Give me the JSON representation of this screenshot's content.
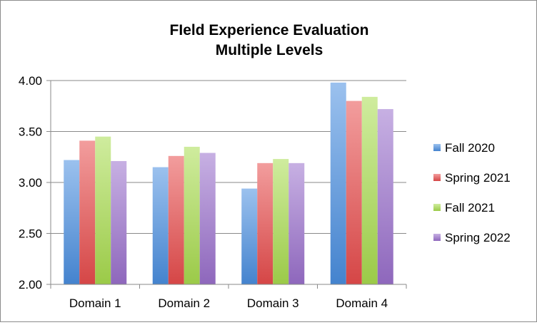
{
  "chart_data": {
    "type": "bar",
    "title_lines": [
      "FIeld Experience Evaluation",
      "Multiple Levels"
    ],
    "categories": [
      "Domain 1",
      "Domain 2",
      "Domain 3",
      "Domain 4"
    ],
    "series": [
      {
        "name": "Fall 2020",
        "values": [
          3.22,
          3.15,
          2.94,
          3.98
        ],
        "color": "#4a8ee0"
      },
      {
        "name": "Spring 2021",
        "values": [
          3.41,
          3.26,
          3.19,
          3.8
        ],
        "color": "#e84c4c"
      },
      {
        "name": "Fall 2021",
        "values": [
          3.45,
          3.35,
          3.23,
          3.84
        ],
        "color": "#a8dc4e"
      },
      {
        "name": "Spring 2022",
        "values": [
          3.21,
          3.29,
          3.19,
          3.72
        ],
        "color": "#9a70cc"
      }
    ],
    "yticks": [
      "2.00",
      "2.50",
      "3.00",
      "3.50",
      "4.00"
    ],
    "ylim": [
      2.0,
      4.0
    ],
    "grid": true,
    "legend_position": "right"
  }
}
